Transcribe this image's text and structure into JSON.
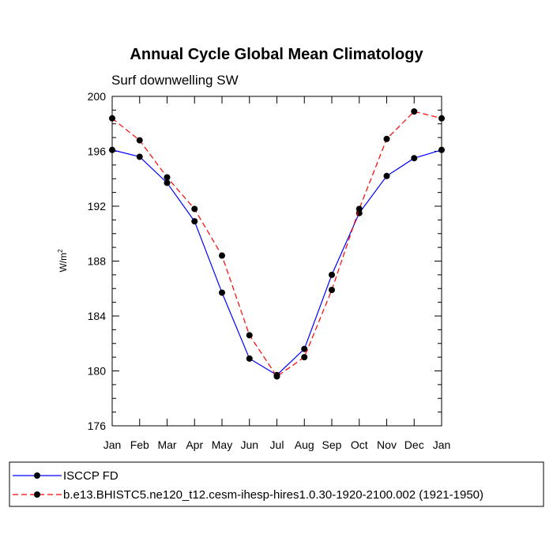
{
  "chart_data": {
    "type": "line",
    "title": "Annual Cycle Global Mean Climatology",
    "subtitle": "Surf downwelling SW",
    "ylabel_base": "W/m",
    "ylabel_sup": "2",
    "categories": [
      "Jan",
      "Feb",
      "Mar",
      "Apr",
      "May",
      "Jun",
      "Jul",
      "Aug",
      "Sep",
      "Oct",
      "Nov",
      "Dec",
      "Jan"
    ],
    "ylim": [
      176,
      200
    ],
    "yticks": [
      "176",
      "180",
      "184",
      "188",
      "192",
      "196",
      "200"
    ],
    "grid": false,
    "legend_position": "bottom",
    "series": [
      {
        "name": "ISCCP FD",
        "color": "#0000ff",
        "dash": "solid",
        "values": [
          196.1,
          195.6,
          193.7,
          190.9,
          185.7,
          180.9,
          179.7,
          181.6,
          187.0,
          191.5,
          194.2,
          195.5,
          196.1
        ]
      },
      {
        "name": "b.e13.BHISTC5.ne120_t12.cesm-ihesp-hires1.0.30-1920-2100.002 (1921-1950)",
        "color": "#ff0000",
        "dash": "dashed",
        "values": [
          198.4,
          196.8,
          194.1,
          191.8,
          188.4,
          182.6,
          179.6,
          181.0,
          185.9,
          191.8,
          196.9,
          198.9,
          198.4
        ]
      }
    ]
  }
}
